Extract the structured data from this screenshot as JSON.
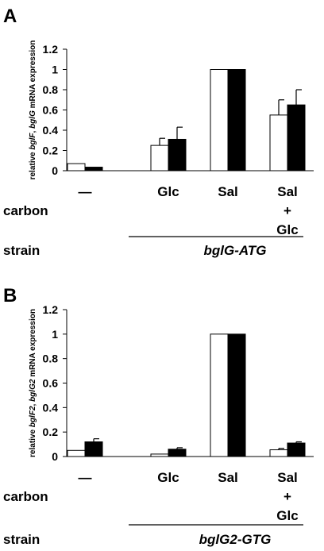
{
  "chart_data": [
    {
      "panel": "A",
      "type": "bar",
      "ylabel_parts": [
        {
          "text": "relative ",
          "italic": false
        },
        {
          "text": "bglF",
          "italic": true
        },
        {
          "text": ", ",
          "italic": false
        },
        {
          "text": "bglG",
          "italic": true
        },
        {
          "text": " mRNA expression",
          "italic": false
        }
      ],
      "ylim": [
        0,
        1.2
      ],
      "yticks": [
        "0",
        "0.2",
        "0.4",
        "0.6",
        "0.8",
        "1",
        "1.2"
      ],
      "categories": [
        "—",
        "Glc",
        "Sal",
        "Sal\n+\nGlc"
      ],
      "series": [
        {
          "color": "#ffffff",
          "values": [
            0.07,
            0.25,
            1.0,
            0.55
          ],
          "errors": [
            0.0,
            0.07,
            0.0,
            0.15
          ]
        },
        {
          "color": "#000000",
          "values": [
            0.035,
            0.31,
            1.0,
            0.65
          ],
          "errors": [
            0.0,
            0.12,
            0.0,
            0.15
          ]
        }
      ],
      "row_label": "carbon",
      "strain_label": "strain",
      "strain_value": "bglG-ATG"
    },
    {
      "panel": "B",
      "type": "bar",
      "ylabel_parts": [
        {
          "text": "relative ",
          "italic": false
        },
        {
          "text": "bglF2",
          "italic": true
        },
        {
          "text": ", ",
          "italic": false
        },
        {
          "text": "bglG2",
          "italic": true
        },
        {
          "text": " mRNA expression",
          "italic": false
        }
      ],
      "ylim": [
        0,
        1.2
      ],
      "yticks": [
        "0",
        "0.2",
        "0.4",
        "0.6",
        "0.8",
        "1",
        "1.2"
      ],
      "categories": [
        "—",
        "Glc",
        "Sal",
        "Sal\n+\nGlc"
      ],
      "series": [
        {
          "color": "#ffffff",
          "values": [
            0.05,
            0.02,
            1.0,
            0.055
          ],
          "errors": [
            0.0,
            0.0,
            0.0,
            0.012
          ]
        },
        {
          "color": "#000000",
          "values": [
            0.12,
            0.06,
            1.0,
            0.11
          ],
          "errors": [
            0.025,
            0.012,
            0.0,
            0.01
          ]
        }
      ],
      "row_label": "carbon",
      "strain_label": "strain",
      "strain_value": "bglG2-GTG"
    }
  ]
}
